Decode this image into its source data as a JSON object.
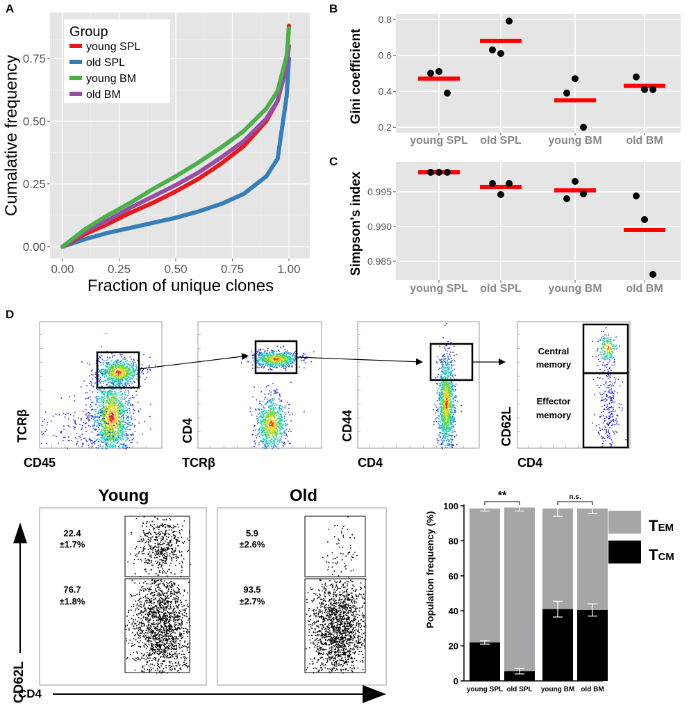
{
  "panel_labels": {
    "a": "A",
    "b": "B",
    "c": "C",
    "d": "D"
  },
  "colors": {
    "young_spl": "#e41a1c",
    "old_spl": "#377eb8",
    "young_bm": "#4daf4a",
    "old_bm": "#984ea3",
    "median": "#ff0000",
    "panel_bg": "#e5e5e5",
    "grid": "#ffffff",
    "tem": "#a6a6a8",
    "tcm": "#000000"
  },
  "chart_data": [
    {
      "id": "A",
      "type": "line",
      "xlabel": "Fraction of unique clones",
      "ylabel": "Cumalative frequency",
      "xlim": [
        0,
        1
      ],
      "ylim": [
        0,
        0.9
      ],
      "xticks": [
        "0.00",
        "0.25",
        "0.50",
        "0.75",
        "1.00"
      ],
      "yticks": [
        "0.00",
        "0.25",
        "0.50",
        "0.75"
      ],
      "legend": {
        "title": "Group",
        "position": "top-left"
      },
      "series": [
        {
          "name": "young SPL",
          "color_key": "young_spl",
          "x": [
            0,
            0.1,
            0.2,
            0.3,
            0.4,
            0.5,
            0.6,
            0.7,
            0.8,
            0.9,
            0.95,
            0.99,
            1.0
          ],
          "y": [
            0,
            0.05,
            0.09,
            0.135,
            0.175,
            0.22,
            0.27,
            0.33,
            0.4,
            0.5,
            0.58,
            0.73,
            0.88
          ]
        },
        {
          "name": "old SPL",
          "color_key": "old_spl",
          "x": [
            0,
            0.1,
            0.2,
            0.3,
            0.4,
            0.5,
            0.6,
            0.7,
            0.8,
            0.9,
            0.95,
            0.99,
            1.0
          ],
          "y": [
            0,
            0.03,
            0.055,
            0.075,
            0.095,
            0.115,
            0.14,
            0.17,
            0.21,
            0.28,
            0.35,
            0.6,
            0.75
          ]
        },
        {
          "name": "young BM",
          "color_key": "young_bm",
          "x": [
            0,
            0.1,
            0.2,
            0.3,
            0.4,
            0.5,
            0.6,
            0.7,
            0.8,
            0.9,
            0.95,
            0.99,
            1.0
          ],
          "y": [
            0,
            0.07,
            0.125,
            0.175,
            0.23,
            0.28,
            0.335,
            0.395,
            0.46,
            0.55,
            0.62,
            0.76,
            0.87
          ]
        },
        {
          "name": "old BM",
          "color_key": "old_bm",
          "x": [
            0,
            0.1,
            0.2,
            0.3,
            0.4,
            0.5,
            0.6,
            0.7,
            0.8,
            0.9,
            0.95,
            0.99,
            1.0
          ],
          "y": [
            0,
            0.06,
            0.105,
            0.155,
            0.2,
            0.245,
            0.295,
            0.355,
            0.42,
            0.51,
            0.58,
            0.72,
            0.8
          ]
        }
      ]
    },
    {
      "id": "B",
      "type": "scatter",
      "ylabel": "Gini coefficient",
      "ylim": [
        0.17,
        0.83
      ],
      "yticks": [
        "0.2",
        "0.4",
        "0.6",
        "0.8"
      ],
      "categories": [
        "young SPL",
        "old SPL",
        "young BM",
        "old BM"
      ],
      "points": [
        [
          0.5,
          0.51,
          0.39
        ],
        [
          0.63,
          0.61,
          0.79
        ],
        [
          0.39,
          0.47,
          0.2
        ],
        [
          0.48,
          0.41,
          0.41
        ]
      ],
      "medians": [
        0.47,
        0.68,
        0.35,
        0.43
      ]
    },
    {
      "id": "C",
      "type": "scatter",
      "ylabel": "Simpson's index",
      "ylim": [
        0.9823,
        0.9993
      ],
      "yticks": [
        "0.985",
        "0.990",
        "0.995"
      ],
      "categories": [
        "young SPL",
        "old SPL",
        "young BM",
        "old BM"
      ],
      "points": [
        [
          0.9978,
          0.9978,
          0.9978
        ],
        [
          0.9962,
          0.9946,
          0.9962
        ],
        [
          0.994,
          0.9965,
          0.9947
        ],
        [
          0.9944,
          0.991,
          0.9831
        ]
      ],
      "medians": [
        0.9978,
        0.9957,
        0.9952,
        0.9895
      ]
    },
    {
      "id": "D-bar",
      "type": "bar",
      "stacked": true,
      "ylabel": "Population frequency (%)",
      "ylim": [
        0,
        100
      ],
      "yticks": [
        "0",
        "20",
        "40",
        "60",
        "80",
        "100"
      ],
      "categories": [
        "young SPL",
        "old SPL",
        "young BM",
        "old BM"
      ],
      "series": [
        {
          "name": "TCM",
          "values": [
            22,
            5.5,
            41,
            40.5
          ],
          "errors": [
            1,
            1.5,
            4.5,
            3.5
          ]
        },
        {
          "name": "TEM",
          "values": [
            76.5,
            93.5,
            57.5,
            58
          ],
          "errors": [
            1.5,
            2,
            4.5,
            3
          ]
        }
      ],
      "totals": [
        98.5,
        99,
        98.5,
        98.5
      ],
      "significance": [
        {
          "pair": [
            0,
            1
          ],
          "label": "**"
        },
        {
          "pair": [
            2,
            3
          ],
          "label": "n.s."
        }
      ],
      "legend": [
        {
          "label": "T",
          "sub": "EM",
          "color_key": "tem"
        },
        {
          "label": "T",
          "sub": "CM",
          "color_key": "tcm"
        }
      ]
    }
  ],
  "flow": {
    "plots": [
      {
        "y_label": "TCRβ",
        "x_label": "CD45"
      },
      {
        "y_label": "CD4",
        "x_label": "TCRβ"
      },
      {
        "y_label": "CD44",
        "x_label": "CD4"
      },
      {
        "y_label": "CD62L",
        "x_label": "CD4"
      }
    ],
    "gate_labels": {
      "central": [
        "Central",
        "memory"
      ],
      "effector": [
        "Effector",
        "memory"
      ]
    }
  },
  "young_old": {
    "young_title": "Young",
    "old_title": "Old",
    "y_axis": "CD62L",
    "x_axis": "CD4",
    "young_upper": [
      "22.4",
      "±1.7%"
    ],
    "young_lower": [
      "76.7",
      "±1.8%"
    ],
    "old_upper": [
      "5.9",
      "±2.6%"
    ],
    "old_lower": [
      "93.5",
      "±2.7%"
    ]
  }
}
